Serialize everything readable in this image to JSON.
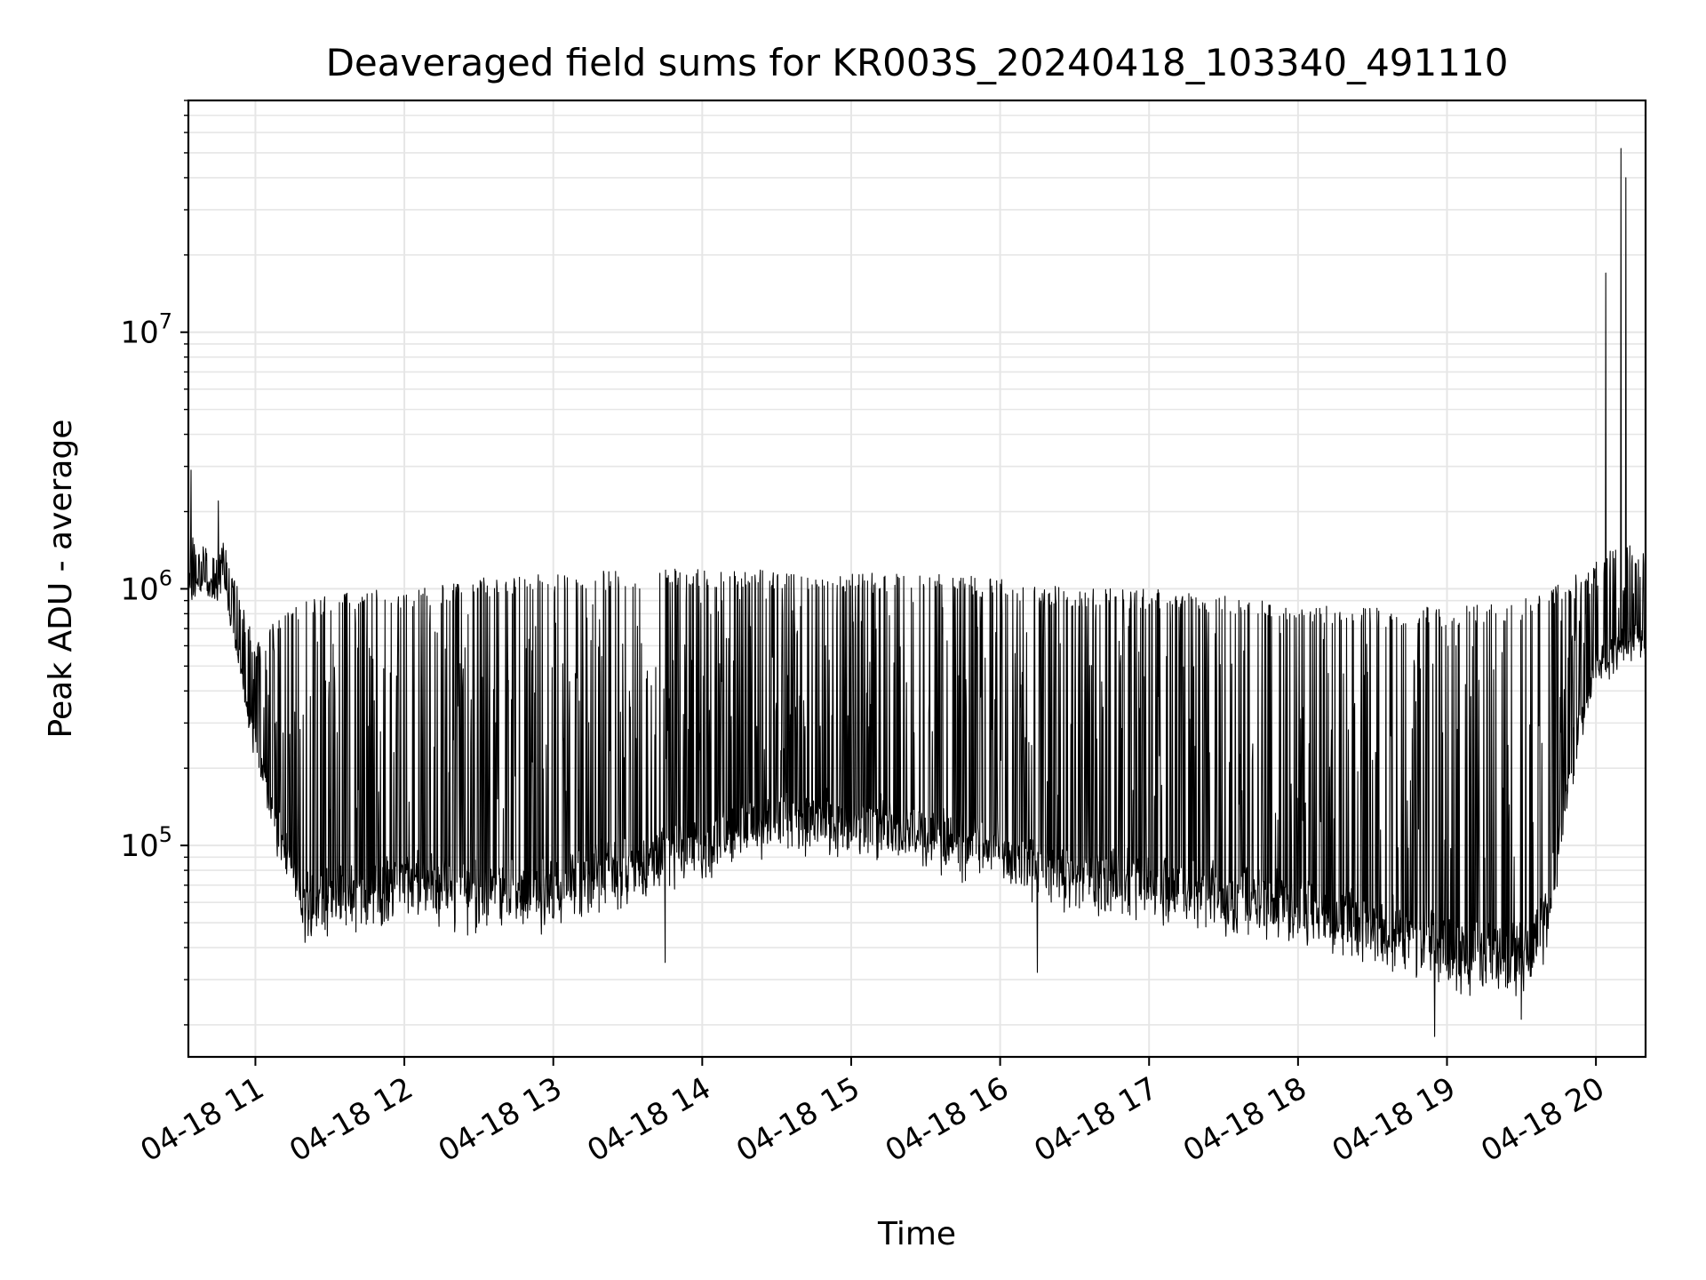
{
  "chart_data": {
    "type": "line",
    "title": "Deaveraged field sums for KR003S_20240418_103340_491110",
    "xlabel": "Time",
    "ylabel": "Peak ADU - average",
    "y_scale": "log",
    "ylim": [
      15000,
      80000000
    ],
    "xlim": [
      "2024-04-18 10:33",
      "2024-04-18 20:20"
    ],
    "grid": true,
    "line_color": "#000000",
    "grid_color": "#e6e6e6",
    "x_ticks": [
      {
        "value": "2024-04-18 11:00",
        "label": "04-18 11"
      },
      {
        "value": "2024-04-18 12:00",
        "label": "04-18 12"
      },
      {
        "value": "2024-04-18 13:00",
        "label": "04-18 13"
      },
      {
        "value": "2024-04-18 14:00",
        "label": "04-18 14"
      },
      {
        "value": "2024-04-18 15:00",
        "label": "04-18 15"
      },
      {
        "value": "2024-04-18 16:00",
        "label": "04-18 16"
      },
      {
        "value": "2024-04-18 17:00",
        "label": "04-18 17"
      },
      {
        "value": "2024-04-18 18:00",
        "label": "04-18 18"
      },
      {
        "value": "2024-04-18 19:00",
        "label": "04-18 19"
      },
      {
        "value": "2024-04-18 20:00",
        "label": "04-18 20"
      }
    ],
    "y_ticks": [
      {
        "value": 100000,
        "base": "10",
        "exp": "5"
      },
      {
        "value": 1000000,
        "base": "10",
        "exp": "6"
      },
      {
        "value": 10000000,
        "base": "10",
        "exp": "7"
      }
    ],
    "series": [
      {
        "envelope": {
          "time": [
            "2024-04-18 10:33",
            "2024-04-18 10:48",
            "2024-04-18 11:00",
            "2024-04-18 11:10",
            "2024-04-18 11:20",
            "2024-04-18 11:40",
            "2024-04-18 12:00",
            "2024-04-18 12:30",
            "2024-04-18 13:00",
            "2024-04-18 13:30",
            "2024-04-18 14:00",
            "2024-04-18 14:30",
            "2024-04-18 15:00",
            "2024-04-18 15:30",
            "2024-04-18 16:00",
            "2024-04-18 16:30",
            "2024-04-18 17:00",
            "2024-04-18 17:30",
            "2024-04-18 18:00",
            "2024-04-18 18:30",
            "2024-04-18 19:00",
            "2024-04-18 19:30",
            "2024-04-18 19:40",
            "2024-04-18 19:50",
            "2024-04-18 20:00",
            "2024-04-18 20:10",
            "2024-04-18 20:20"
          ],
          "low": [
            1100000,
            1100000,
            250000,
            100000,
            50000,
            55000,
            60000,
            55000,
            55000,
            70000,
            90000,
            110000,
            110000,
            100000,
            80000,
            65000,
            60000,
            55000,
            50000,
            40000,
            32000,
            30000,
            40000,
            200000,
            500000,
            600000,
            650000
          ],
          "high": [
            1600000,
            1500000,
            600000,
            800000,
            900000,
            1000000,
            1000000,
            1100000,
            1150000,
            1200000,
            1200000,
            1200000,
            1150000,
            1150000,
            1100000,
            1000000,
            1000000,
            950000,
            900000,
            850000,
            850000,
            900000,
            1000000,
            1100000,
            1300000,
            1500000,
            1500000
          ]
        },
        "spikes": [
          {
            "time": "2024-04-18 10:34",
            "value": 2900000
          },
          {
            "time": "2024-04-18 10:45",
            "value": 2200000
          },
          {
            "time": "2024-04-18 20:04",
            "value": 17000000
          },
          {
            "time": "2024-04-18 20:10",
            "value": 52000000
          },
          {
            "time": "2024-04-18 20:12",
            "value": 40000000
          }
        ],
        "dips": [
          {
            "time": "2024-04-18 13:45",
            "value": 35000
          },
          {
            "time": "2024-04-18 16:15",
            "value": 32000
          },
          {
            "time": "2024-04-18 18:55",
            "value": 18000
          },
          {
            "time": "2024-04-18 19:30",
            "value": 21000
          }
        ]
      }
    ]
  }
}
